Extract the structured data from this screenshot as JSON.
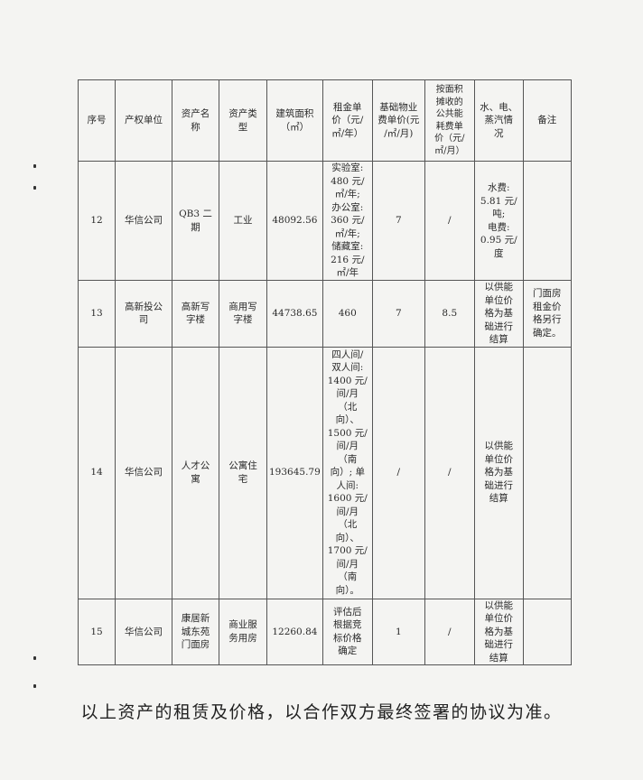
{
  "table": {
    "headers": [
      "序号",
      "产权单位",
      "资产名\n称",
      "资产类\n型",
      "建筑面积\n（㎡）",
      "租金单\n价（元/\n㎡/年）",
      "基础物业\n费单价(元\n/㎡/月)",
      "按面积\n摊收的\n公共能\n耗费单\n价（元/\n㎡/月）",
      "水、电、\n蒸汽情\n况",
      "备注"
    ],
    "rows": [
      {
        "cells": [
          "12",
          "华信公司",
          "QB3 二期",
          "工业",
          "48092.56",
          "实验室:\n480 元/\n㎡/年;\n办公室:\n360 元/\n㎡/年;\n储藏室:\n216 元/\n㎡/年",
          "7",
          "/",
          "水费:\n5.81 元/\n吨;\n电费:\n0.95 元/\n度",
          ""
        ]
      },
      {
        "cells": [
          "13",
          "高新投公\n司",
          "高新写\n字楼",
          "商用写\n字楼",
          "44738.65",
          "460",
          "7",
          "8.5",
          "以供能\n单位价\n格为基\n础进行\n结算",
          "门面房\n租金价\n格另行\n确定。"
        ]
      },
      {
        "cells": [
          "14",
          "华信公司",
          "人才公\n寓",
          "公寓住\n宅",
          "193645.79",
          "四人间/\n双人间:\n1400 元/\n间/月\n（北\n向）、\n1500 元/\n间/月\n（南\n向）; 单\n人间:\n1600 元/\n间/月\n（北\n向）、\n1700 元/\n间/月\n（南\n向）。",
          "/",
          "/",
          "以供能\n单位价\n格为基\n础进行\n结算",
          ""
        ]
      },
      {
        "cells": [
          "15",
          "华信公司",
          "康居新\n城东苑\n门面房",
          "商业服\n务用房",
          "12260.84",
          "评估后\n根据竞\n标价格\n确定",
          "1",
          "/",
          "以供能\n单位价\n格为基\n础进行\n结算",
          ""
        ]
      }
    ]
  },
  "footer": "以上资产的租赁及价格，以合作双方最终签署的协议为准。"
}
